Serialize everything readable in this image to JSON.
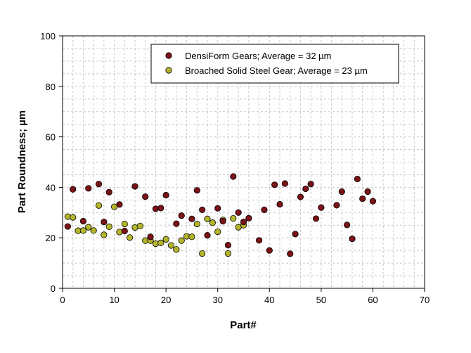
{
  "chart_data": {
    "type": "scatter",
    "xlabel": "Part#",
    "ylabel": "Part Roundness; µm",
    "xlim": [
      0,
      70
    ],
    "ylim": [
      0,
      100
    ],
    "x_ticks": [
      0,
      10,
      20,
      30,
      40,
      50,
      60,
      70
    ],
    "y_ticks": [
      0,
      20,
      40,
      60,
      80,
      100
    ],
    "x_tick_labels": [
      "0",
      "10",
      "20",
      "30",
      "40",
      "50",
      "60",
      "70"
    ],
    "y_tick_labels": [
      "0",
      "20",
      "40",
      "60",
      "80",
      "100"
    ],
    "grid": true,
    "legend_position": "top-right",
    "series": [
      {
        "name": "DensiForm Gears;  Average = 32 µm",
        "color": "#7a1216",
        "points": [
          [
            1,
            24.5
          ],
          [
            2,
            39.2
          ],
          [
            4,
            26.6
          ],
          [
            5,
            39.6
          ],
          [
            7,
            41.3
          ],
          [
            8,
            26.3
          ],
          [
            9,
            38.1
          ],
          [
            11,
            33.2
          ],
          [
            12,
            22.7
          ],
          [
            14,
            40.4
          ],
          [
            16,
            36.3
          ],
          [
            17,
            20.4
          ],
          [
            18,
            31.5
          ],
          [
            19,
            31.8
          ],
          [
            20,
            36.9
          ],
          [
            22,
            25.6
          ],
          [
            23,
            28.8
          ],
          [
            25,
            27.5
          ],
          [
            26,
            38.8
          ],
          [
            27,
            31.1
          ],
          [
            28,
            21.0
          ],
          [
            30,
            31.7
          ],
          [
            31,
            26.6
          ],
          [
            32,
            17.1
          ],
          [
            33,
            44.3
          ],
          [
            34,
            30.0
          ],
          [
            35,
            26.3
          ],
          [
            36,
            27.8
          ],
          [
            38,
            19.0
          ],
          [
            39,
            31.1
          ],
          [
            40,
            15.0
          ],
          [
            41,
            41.0
          ],
          [
            42,
            33.3
          ],
          [
            43,
            41.5
          ],
          [
            44,
            13.7
          ],
          [
            45,
            21.5
          ],
          [
            46,
            36.2
          ],
          [
            47,
            39.4
          ],
          [
            48,
            41.3
          ],
          [
            49,
            27.6
          ],
          [
            50,
            32.0
          ],
          [
            53,
            32.9
          ],
          [
            54,
            38.3
          ],
          [
            55,
            25.1
          ],
          [
            56,
            19.6
          ],
          [
            57,
            43.3
          ],
          [
            58,
            35.5
          ],
          [
            59,
            38.3
          ],
          [
            60,
            34.5
          ]
        ]
      },
      {
        "name": "Broached Solid Steel Gear;  Average = 23 µm",
        "color": "#b5b52c",
        "points": [
          [
            1,
            28.4
          ],
          [
            2,
            28.1
          ],
          [
            3,
            22.8
          ],
          [
            4,
            22.9
          ],
          [
            5,
            24.2
          ],
          [
            6,
            22.9
          ],
          [
            7,
            32.8
          ],
          [
            8,
            21.2
          ],
          [
            9,
            24.4
          ],
          [
            10,
            32.3
          ],
          [
            11,
            22.3
          ],
          [
            12,
            25.5
          ],
          [
            13,
            20.1
          ],
          [
            14,
            24.1
          ],
          [
            15,
            24.7
          ],
          [
            16,
            18.9
          ],
          [
            17,
            18.9
          ],
          [
            18,
            17.7
          ],
          [
            19,
            18.0
          ],
          [
            20,
            19.4
          ],
          [
            21,
            17.0
          ],
          [
            22,
            15.4
          ],
          [
            23,
            18.9
          ],
          [
            24,
            20.6
          ],
          [
            25,
            20.4
          ],
          [
            26,
            25.5
          ],
          [
            27,
            13.8
          ],
          [
            28,
            27.5
          ],
          [
            29,
            26.0
          ],
          [
            30,
            22.4
          ],
          [
            31,
            27.1
          ],
          [
            32,
            13.8
          ],
          [
            33,
            27.7
          ],
          [
            34,
            24.2
          ],
          [
            35,
            25.0
          ]
        ]
      }
    ]
  }
}
